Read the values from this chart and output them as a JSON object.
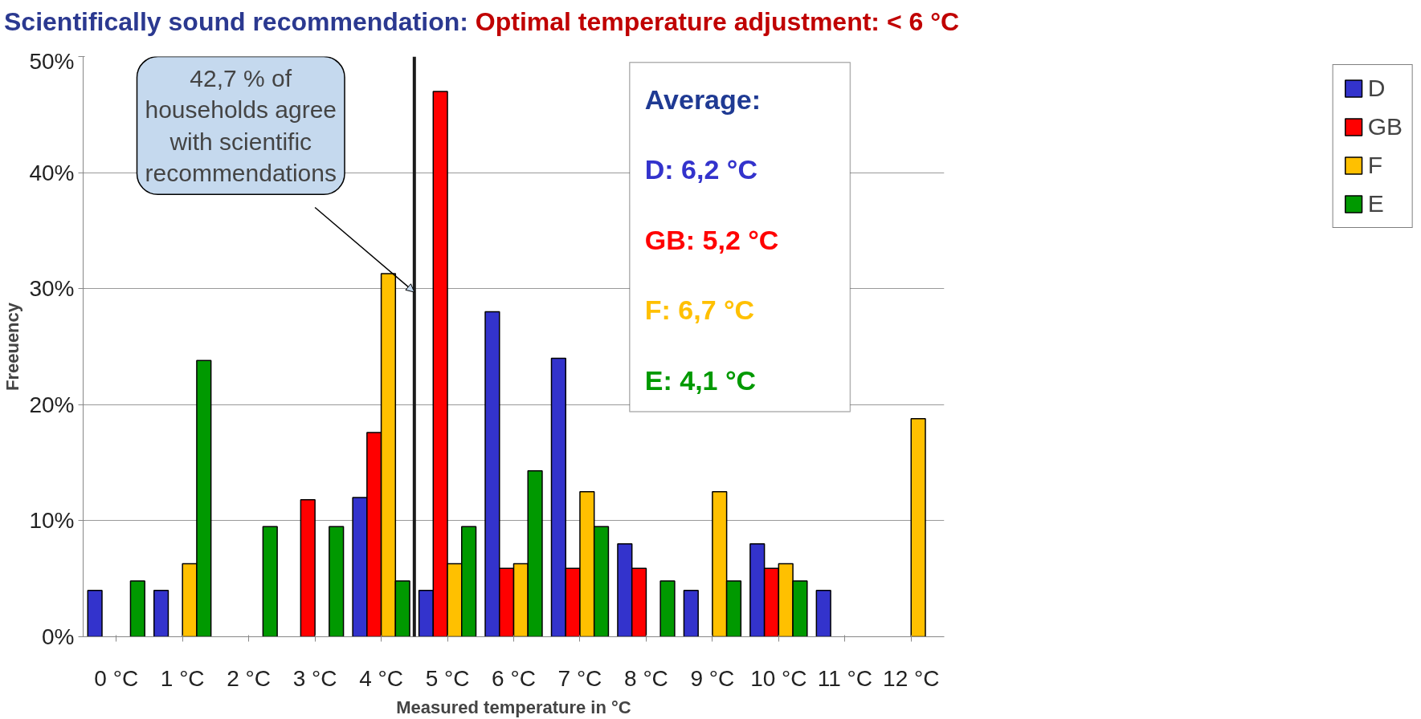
{
  "chart_data": {
    "type": "bar",
    "title": "Scientifically sound recommendation:",
    "subtitle": "Optimal temperature adjustment: < 6 °C",
    "xlabel": "Measured temperature in °C",
    "ylabel": "Freeuency",
    "x": [
      0,
      1,
      2,
      3,
      4,
      5,
      6,
      7,
      8,
      9,
      10,
      11,
      12
    ],
    "xlim": [
      -0.5,
      12.5
    ],
    "xticks": [
      {
        "value": 0,
        "label": "0 °C"
      },
      {
        "value": 1,
        "label": "1 °C"
      },
      {
        "value": 2,
        "label": "2 °C"
      },
      {
        "value": 3,
        "label": "3 °C"
      },
      {
        "value": 4,
        "label": "4 °C"
      },
      {
        "value": 5,
        "label": "5 °C"
      },
      {
        "value": 6,
        "label": "6 °C"
      },
      {
        "value": 7,
        "label": "7 °C"
      },
      {
        "value": 8,
        "label": "8 °C"
      },
      {
        "value": 9,
        "label": "9 °C"
      },
      {
        "value": 10,
        "label": "10 °C"
      },
      {
        "value": 11,
        "label": "11 °C"
      },
      {
        "value": 12,
        "label": "12 °C"
      }
    ],
    "ylim": [
      0,
      50
    ],
    "yticks": [
      {
        "value": 0,
        "label": "0%"
      },
      {
        "value": 10,
        "label": "10%"
      },
      {
        "value": 20,
        "label": "20%"
      },
      {
        "value": 30,
        "label": "30%"
      },
      {
        "value": 40,
        "label": "40%"
      },
      {
        "value": 50,
        "label": "50%"
      }
    ],
    "series": [
      {
        "name": "D",
        "color": "#3333cc",
        "values": [
          4,
          4,
          null,
          null,
          12,
          4,
          28,
          24,
          8,
          4,
          8,
          4,
          null
        ]
      },
      {
        "name": "GB",
        "color": "#ff0000",
        "values": [
          null,
          null,
          null,
          11.8,
          17.6,
          47,
          5.9,
          5.9,
          5.9,
          null,
          5.9,
          null,
          null
        ]
      },
      {
        "name": "F",
        "color": "#ffc000",
        "values": [
          null,
          6.3,
          null,
          null,
          31.3,
          6.3,
          6.3,
          12.5,
          null,
          12.5,
          6.3,
          null,
          18.8
        ]
      },
      {
        "name": "E",
        "color": "#009900",
        "values": [
          4.8,
          23.8,
          9.5,
          9.5,
          4.8,
          9.5,
          14.3,
          9.5,
          4.8,
          4.8,
          4.8,
          null,
          null
        ]
      }
    ],
    "ref_lines": [
      {
        "axis": "x",
        "value": 4.5,
        "color": "#1a1a1a"
      }
    ],
    "annotations": [
      {
        "text": "42,7 % of\nhouseholds agree\nwith scientific\nrecommendations",
        "x": 4.5,
        "y": 29.7
      },
      "Average:",
      "D: 6,2 °C",
      "GB: 5,2 °C",
      "F: 6,7 °C",
      "E: 4,1 °C"
    ],
    "grid": "y",
    "legend": "right"
  }
}
